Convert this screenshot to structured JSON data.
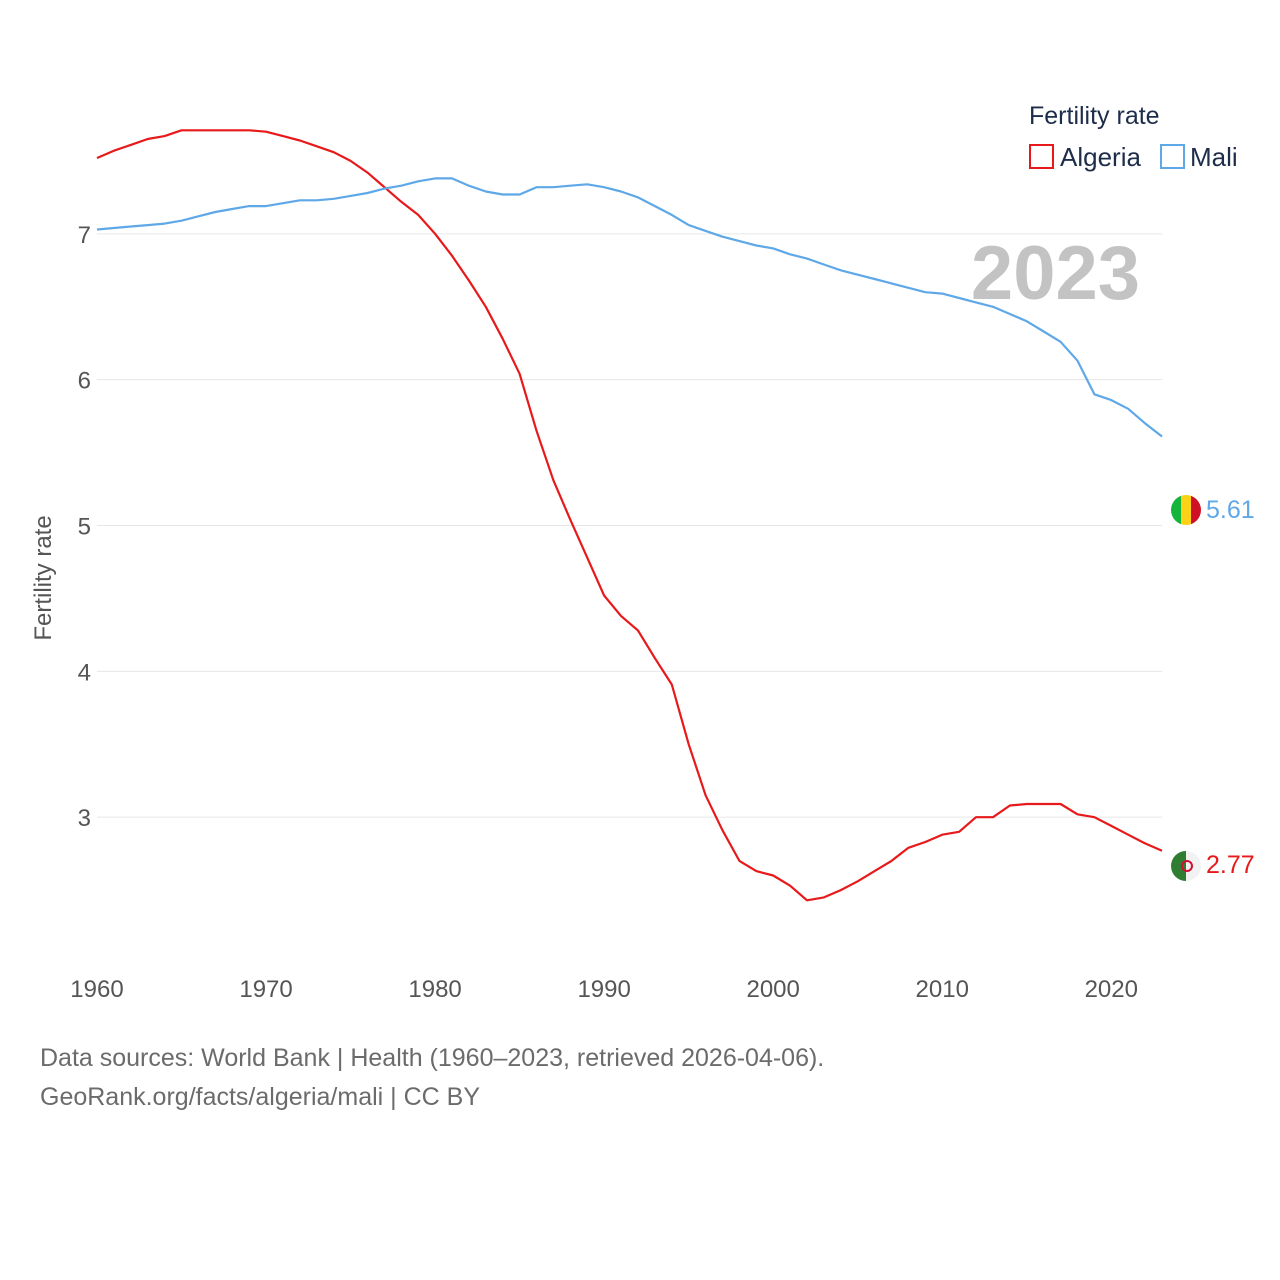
{
  "chart_data": {
    "type": "line",
    "title": "",
    "xlabel": "",
    "ylabel": "Fertility rate",
    "xlim": [
      1960,
      2023
    ],
    "ylim": [
      2,
      8
    ],
    "yticks": [
      3,
      4,
      5,
      6,
      7
    ],
    "xticks": [
      1960,
      1970,
      1980,
      1990,
      2000,
      2010,
      2020
    ],
    "year_label": "2023",
    "legend": {
      "title": "Fertility rate",
      "position": "top-right",
      "entries": [
        "Algeria",
        "Mali"
      ]
    },
    "series": [
      {
        "name": "Algeria",
        "color": "#e8191a",
        "end_label": "2.77",
        "flag_icon": "algeria-flag-icon",
        "x": [
          1960,
          1961,
          1962,
          1963,
          1964,
          1965,
          1966,
          1967,
          1968,
          1969,
          1970,
          1971,
          1972,
          1973,
          1974,
          1975,
          1976,
          1977,
          1978,
          1979,
          1980,
          1981,
          1982,
          1983,
          1984,
          1985,
          1986,
          1987,
          1988,
          1989,
          1990,
          1991,
          1992,
          1993,
          1994,
          1995,
          1996,
          1997,
          1998,
          1999,
          2000,
          2001,
          2002,
          2003,
          2004,
          2005,
          2006,
          2007,
          2008,
          2009,
          2010,
          2011,
          2012,
          2013,
          2014,
          2015,
          2016,
          2017,
          2018,
          2019,
          2020,
          2021,
          2022,
          2023
        ],
        "values": [
          7.52,
          7.57,
          7.61,
          7.65,
          7.67,
          7.71,
          7.71,
          7.71,
          7.71,
          7.71,
          7.7,
          7.67,
          7.64,
          7.6,
          7.56,
          7.5,
          7.42,
          7.32,
          7.22,
          7.13,
          7.0,
          6.85,
          6.68,
          6.5,
          6.28,
          6.04,
          5.65,
          5.31,
          5.04,
          4.78,
          4.52,
          4.38,
          4.28,
          4.09,
          3.91,
          3.5,
          3.15,
          2.91,
          2.7,
          2.63,
          2.6,
          2.53,
          2.43,
          2.45,
          2.5,
          2.56,
          2.63,
          2.7,
          2.79,
          2.83,
          2.88,
          2.9,
          3.0,
          3.0,
          3.08,
          3.09,
          3.09,
          3.09,
          3.02,
          3.0,
          2.94,
          2.88,
          2.82,
          2.77
        ]
      },
      {
        "name": "Mali",
        "color": "#5fa8e8",
        "end_label": "5.61",
        "flag_icon": "mali-flag-icon",
        "x": [
          1960,
          1961,
          1962,
          1963,
          1964,
          1965,
          1966,
          1967,
          1968,
          1969,
          1970,
          1971,
          1972,
          1973,
          1974,
          1975,
          1976,
          1977,
          1978,
          1979,
          1980,
          1981,
          1982,
          1983,
          1984,
          1985,
          1986,
          1987,
          1988,
          1989,
          1990,
          1991,
          1992,
          1993,
          1994,
          1995,
          1996,
          1997,
          1998,
          1999,
          2000,
          2001,
          2002,
          2003,
          2004,
          2005,
          2006,
          2007,
          2008,
          2009,
          2010,
          2011,
          2012,
          2013,
          2014,
          2015,
          2016,
          2017,
          2018,
          2019,
          2020,
          2021,
          2022,
          2023
        ],
        "values": [
          7.03,
          7.04,
          7.05,
          7.06,
          7.07,
          7.09,
          7.12,
          7.15,
          7.17,
          7.19,
          7.19,
          7.21,
          7.23,
          7.23,
          7.24,
          7.26,
          7.28,
          7.31,
          7.33,
          7.36,
          7.38,
          7.38,
          7.33,
          7.29,
          7.27,
          7.27,
          7.32,
          7.32,
          7.33,
          7.34,
          7.32,
          7.29,
          7.25,
          7.19,
          7.13,
          7.06,
          7.02,
          6.98,
          6.95,
          6.92,
          6.9,
          6.86,
          6.83,
          6.79,
          6.75,
          6.72,
          6.69,
          6.66,
          6.63,
          6.6,
          6.59,
          6.56,
          6.53,
          6.5,
          6.45,
          6.4,
          6.33,
          6.26,
          6.13,
          5.9,
          5.86,
          5.8,
          5.7,
          5.61
        ]
      }
    ]
  },
  "footer": {
    "line1": "Data sources: World Bank | Health (1960–2023, retrieved 2026-04-06).",
    "line2": "GeoRank.org/facts/algeria/mali | CC BY"
  }
}
